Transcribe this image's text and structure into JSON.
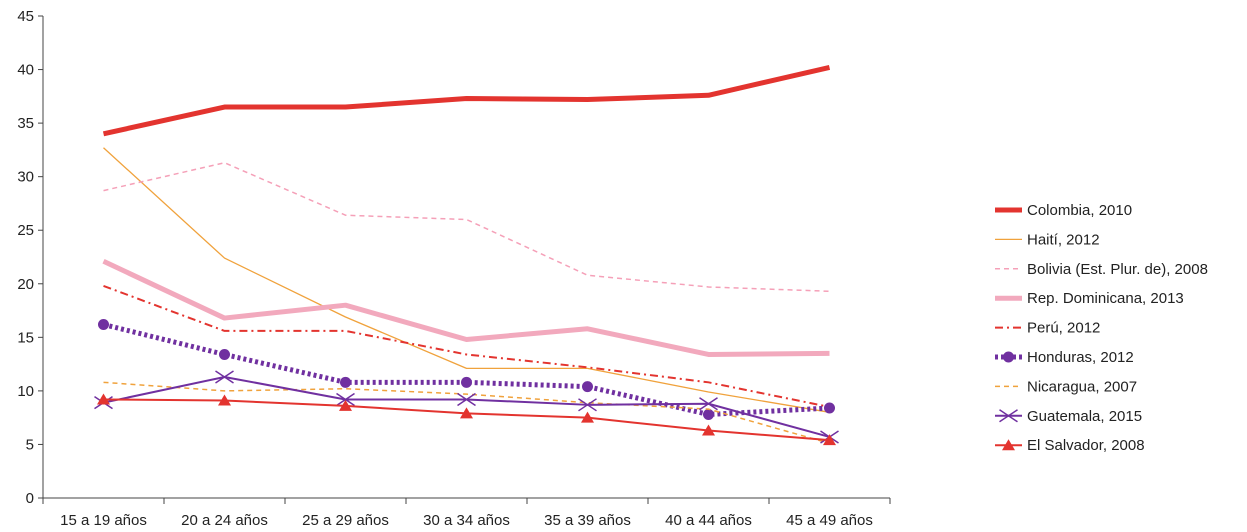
{
  "chart_data": {
    "type": "line",
    "categories": [
      "15 a 19 años",
      "20 a 24 años",
      "25 a 29 años",
      "30 a 34 años",
      "35 a 39 años",
      "40 a 44 años",
      "45 a 49 años"
    ],
    "ylim": [
      0,
      45
    ],
    "yticks": [
      "0",
      "5",
      "10",
      "15",
      "20",
      "25",
      "30",
      "35",
      "40",
      "45"
    ],
    "grid": false,
    "legend_position": "right",
    "series": [
      {
        "name": "Colombia, 2010",
        "values": [
          34.0,
          36.5,
          36.5,
          37.3,
          37.2,
          37.6,
          40.2
        ],
        "color": "#e3342f",
        "style": "thick-solid",
        "marker": "none"
      },
      {
        "name": "Haití, 2012",
        "values": [
          32.7,
          22.4,
          16.9,
          12.1,
          12.1,
          9.9,
          8.0
        ],
        "color": "#f0a23c",
        "style": "thin-solid",
        "marker": "none"
      },
      {
        "name": "Bolivia (Est. Plur. de), 2008",
        "values": [
          28.7,
          31.3,
          26.4,
          26.0,
          20.8,
          19.7,
          19.3
        ],
        "color": "#f5a0b8",
        "style": "dashed",
        "marker": "none"
      },
      {
        "name": "Rep. Dominicana, 2013",
        "values": [
          22.1,
          16.8,
          18.0,
          14.8,
          15.8,
          13.4,
          13.5
        ],
        "color": "#f2a9bd",
        "style": "thick-solid",
        "marker": "none"
      },
      {
        "name": "Perú, 2012",
        "values": [
          19.8,
          15.6,
          15.6,
          13.4,
          12.2,
          10.8,
          8.5
        ],
        "color": "#e3342f",
        "style": "dash-dot",
        "marker": "none"
      },
      {
        "name": "Honduras, 2012",
        "values": [
          16.2,
          13.4,
          10.8,
          10.8,
          10.4,
          7.8,
          8.4
        ],
        "color": "#7030a0",
        "style": "thick-dotted",
        "marker": "circle"
      },
      {
        "name": "Nicaragua, 2007",
        "values": [
          10.8,
          10.0,
          10.2,
          9.7,
          8.9,
          8.3,
          5.1
        ],
        "color": "#f0a23c",
        "style": "dashed",
        "marker": "none"
      },
      {
        "name": "Guatemala, 2015",
        "values": [
          8.9,
          11.3,
          9.2,
          9.2,
          8.7,
          8.8,
          5.7
        ],
        "color": "#7030a0",
        "style": "solid",
        "marker": "x"
      },
      {
        "name": "El Salvador, 2008",
        "values": [
          9.2,
          9.1,
          8.6,
          7.9,
          7.5,
          6.3,
          5.4
        ],
        "color": "#e3342f",
        "style": "solid",
        "marker": "triangle"
      }
    ]
  }
}
